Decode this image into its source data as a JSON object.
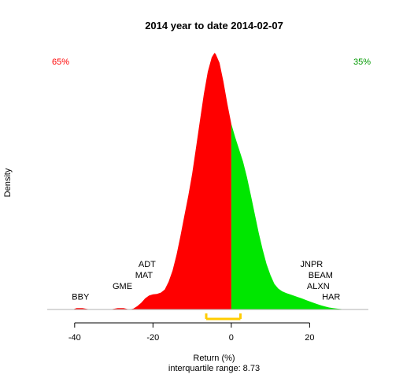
{
  "chart_data": {
    "type": "area",
    "title": "2014  year to date 2014-02-07",
    "xlabel": "Return (%)",
    "ylabel": "Density",
    "subtitle": "interquartile range: 8.73",
    "xlim": [
      -47,
      35
    ],
    "ylim": [
      0,
      0.118
    ],
    "x_ticks": [
      -40,
      -20,
      0,
      20
    ],
    "x_tick_labels": [
      "-40",
      "-20",
      "0",
      "20"
    ],
    "split_at": 0,
    "negative_share_label": "65%",
    "positive_share_label": "35%",
    "colors": {
      "negative": "#ff0000",
      "positive": "#00e600",
      "iqr": "#ffcc00",
      "baseline": "#b0b0b0",
      "negative_label": "#ff0000",
      "positive_label": "#009900"
    },
    "iqr_range": [
      -6.4,
      2.33
    ],
    "density": {
      "x": [
        -40.5,
        -39.5,
        -38,
        -36,
        -34,
        -31,
        -29,
        -27.5,
        -26,
        -25,
        -24,
        -23,
        -22,
        -21,
        -20,
        -19,
        -18,
        -17,
        -16,
        -15,
        -14,
        -13,
        -12,
        -11,
        -10,
        -9,
        -8,
        -7,
        -6,
        -5,
        -4.3,
        -4,
        -3,
        -2,
        -1,
        0,
        1,
        2,
        3,
        4,
        5,
        6,
        7,
        8,
        9,
        10,
        11,
        12,
        13,
        14,
        15,
        16,
        17,
        18,
        19,
        20,
        21,
        22,
        23,
        24,
        25,
        26,
        27,
        28,
        29
      ],
      "y": [
        0.0,
        0.0006,
        0.0006,
        0.0,
        0.0,
        0.0,
        0.0006,
        0.0006,
        0.0,
        0.0004,
        0.0015,
        0.003,
        0.005,
        0.0063,
        0.0068,
        0.007,
        0.0076,
        0.009,
        0.0125,
        0.0175,
        0.0245,
        0.033,
        0.042,
        0.051,
        0.061,
        0.073,
        0.085,
        0.097,
        0.107,
        0.1135,
        0.1155,
        0.115,
        0.111,
        0.1025,
        0.0925,
        0.0835,
        0.0775,
        0.072,
        0.0665,
        0.0595,
        0.0515,
        0.043,
        0.0345,
        0.027,
        0.0205,
        0.0155,
        0.0115,
        0.0094,
        0.0082,
        0.0074,
        0.0068,
        0.0062,
        0.0056,
        0.005,
        0.0043,
        0.0036,
        0.003,
        0.0024,
        0.0018,
        0.0013,
        0.0009,
        0.0006,
        0.0004,
        0.0002,
        0.0
      ]
    },
    "annotations": [
      {
        "text": "BBY",
        "x": -38.5,
        "y": 0.0045
      },
      {
        "text": "GME",
        "x": -27.8,
        "y": 0.0093
      },
      {
        "text": "MAT",
        "x": -22.3,
        "y": 0.0142
      },
      {
        "text": "ADT",
        "x": -21.5,
        "y": 0.0192
      },
      {
        "text": "JNPR",
        "x": 20.5,
        "y": 0.0192
      },
      {
        "text": "BEAM",
        "x": 22.8,
        "y": 0.0142
      },
      {
        "text": "ALXN",
        "x": 22.2,
        "y": 0.0093
      },
      {
        "text": "HAR",
        "x": 25.5,
        "y": 0.0045
      }
    ]
  }
}
